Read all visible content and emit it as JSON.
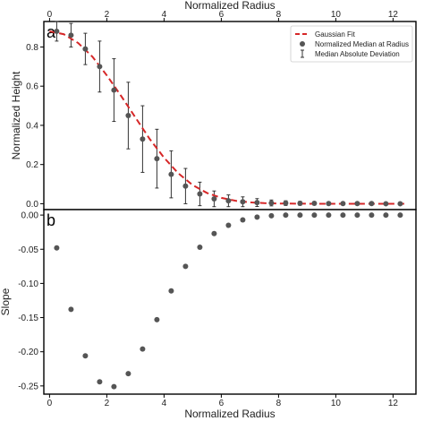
{
  "chart_data": [
    {
      "panel_label": "a",
      "type": "scatter",
      "xlabel": "Normalized Radius",
      "ylabel": "Normalized Height",
      "xlim": [
        -0.2,
        12.8
      ],
      "ylim": [
        -0.03,
        0.93
      ],
      "xticks": [
        "0",
        "2",
        "4",
        "6",
        "8",
        "10",
        "12"
      ],
      "yticks": [
        "0.0",
        "0.2",
        "0.4",
        "0.6",
        "0.8"
      ],
      "x_axis_position": "top",
      "legend": {
        "position": "top-right"
      },
      "colors": {
        "fit": "#d62728",
        "points": "#555555",
        "errorbars": "#333333"
      },
      "series": [
        {
          "name": "Gaussian Fit",
          "kind": "line",
          "style": "dashed",
          "x": [
            0.0,
            0.5,
            1.0,
            1.5,
            2.0,
            2.5,
            3.0,
            3.5,
            4.0,
            4.5,
            5.0,
            5.5,
            6.0,
            6.5,
            7.0,
            7.5,
            8.0,
            9.0,
            10.0,
            11.0,
            12.0,
            12.4
          ],
          "y": [
            0.88,
            0.865,
            0.82,
            0.75,
            0.655,
            0.55,
            0.44,
            0.33,
            0.235,
            0.155,
            0.095,
            0.055,
            0.03,
            0.015,
            0.007,
            0.003,
            0.001,
            0.0,
            0.0,
            0.0,
            0.0,
            0.0
          ]
        },
        {
          "name": "Normalized Median at Radius",
          "kind": "scatter",
          "x": [
            0.25,
            0.75,
            1.25,
            1.75,
            2.25,
            2.75,
            3.25,
            3.75,
            4.25,
            4.75,
            5.25,
            5.75,
            6.25,
            6.75,
            7.25,
            7.75,
            8.25,
            8.75,
            9.25,
            9.75,
            10.25,
            10.75,
            11.25,
            11.75,
            12.25
          ],
          "y": [
            0.88,
            0.86,
            0.79,
            0.7,
            0.58,
            0.45,
            0.33,
            0.23,
            0.15,
            0.09,
            0.05,
            0.025,
            0.015,
            0.01,
            0.006,
            0.004,
            0.003,
            0.002,
            0.002,
            0.001,
            0.001,
            0.001,
            0.001,
            0.0,
            0.0
          ]
        },
        {
          "name": "Median Absolute Deviation",
          "kind": "errorbar",
          "x": [
            0.25,
            0.75,
            1.25,
            1.75,
            2.25,
            2.75,
            3.25,
            3.75,
            4.25,
            4.75,
            5.25,
            5.75,
            6.25,
            6.75,
            7.25,
            7.75,
            8.25,
            8.75,
            9.25,
            9.75,
            10.25,
            10.75,
            11.25,
            11.75,
            12.25
          ],
          "err": [
            0.05,
            0.06,
            0.08,
            0.13,
            0.16,
            0.17,
            0.17,
            0.15,
            0.12,
            0.09,
            0.06,
            0.04,
            0.03,
            0.025,
            0.02,
            0.015,
            0.012,
            0.01,
            0.008,
            0.006,
            0.005,
            0.004,
            0.003,
            0.003,
            0.002
          ]
        }
      ]
    },
    {
      "panel_label": "b",
      "type": "scatter",
      "xlabel": "Normalized Radius",
      "ylabel": "Slope",
      "xlim": [
        -0.2,
        12.8
      ],
      "ylim": [
        -0.262,
        0.008
      ],
      "xticks": [
        "0",
        "2",
        "4",
        "6",
        "8",
        "10",
        "12"
      ],
      "yticks": [
        "0.00",
        "-0.05",
        "-0.10",
        "-0.15",
        "-0.20",
        "-0.25"
      ],
      "colors": {
        "points": "#555555"
      },
      "series": [
        {
          "kind": "scatter",
          "x": [
            0.25,
            0.75,
            1.25,
            1.75,
            2.25,
            2.75,
            3.25,
            3.75,
            4.25,
            4.75,
            5.25,
            5.75,
            6.25,
            6.75,
            7.25,
            7.75,
            8.25,
            8.75,
            9.25,
            9.75,
            10.25,
            10.75,
            11.25,
            11.75,
            12.25
          ],
          "y": [
            -0.048,
            -0.138,
            -0.206,
            -0.244,
            -0.251,
            -0.232,
            -0.196,
            -0.153,
            -0.111,
            -0.075,
            -0.047,
            -0.027,
            -0.015,
            -0.007,
            -0.003,
            -0.001,
            0.0,
            0.0,
            0.0,
            0.0,
            0.0,
            0.0,
            0.0,
            0.0,
            0.0
          ]
        }
      ]
    }
  ]
}
